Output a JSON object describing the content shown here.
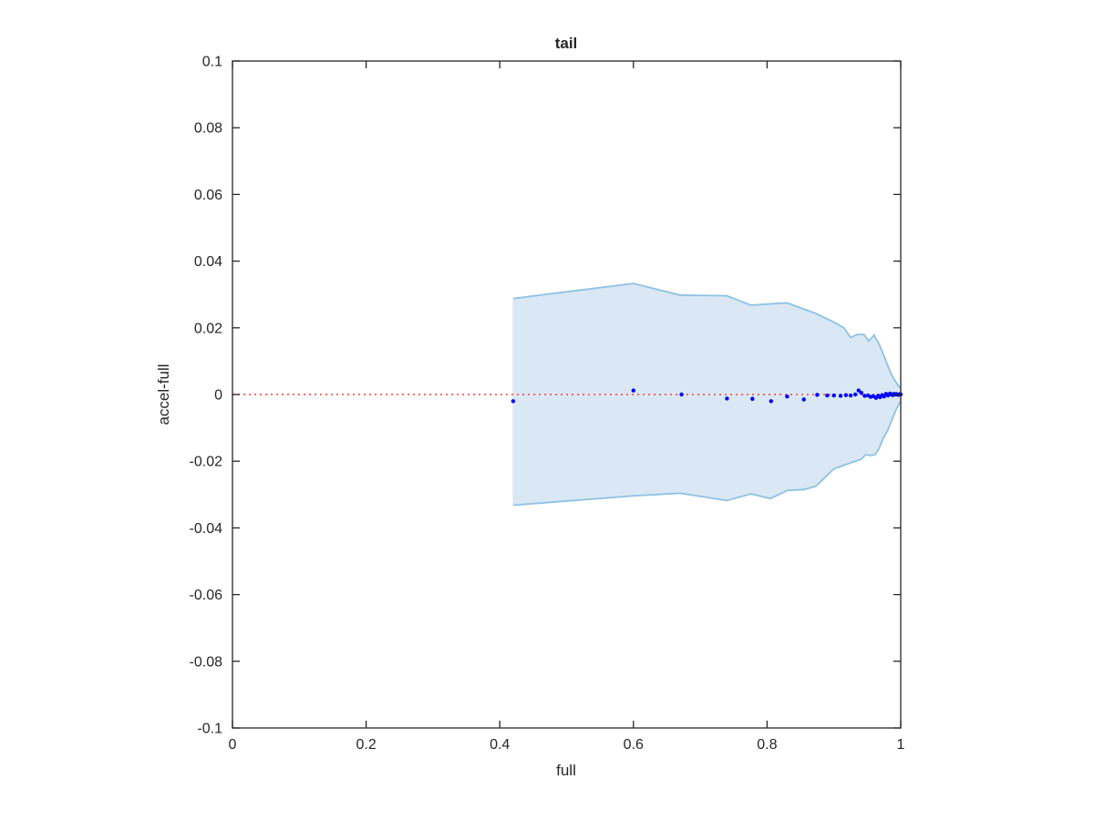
{
  "chart_data": {
    "type": "scatter",
    "title": "tail",
    "xlabel": "full",
    "ylabel": "accel-full",
    "xlim": [
      0,
      1
    ],
    "ylim": [
      -0.1,
      0.1
    ],
    "xticks": [
      0,
      0.2,
      0.4,
      0.6,
      0.8,
      1
    ],
    "xtick_labels": [
      "0",
      "0.2",
      "0.4",
      "0.6",
      "0.8",
      "1"
    ],
    "yticks": [
      -0.1,
      -0.08,
      -0.06,
      -0.04,
      -0.02,
      0,
      0.02,
      0.04,
      0.06,
      0.08,
      0.1
    ],
    "ytick_labels": [
      "-0.1",
      "-0.08",
      "-0.06",
      "-0.04",
      "-0.02",
      "0",
      "0.02",
      "0.04",
      "0.06",
      "0.08",
      "0.1"
    ],
    "grid": false,
    "reference_line": {
      "y": 0,
      "style": "dotted",
      "color": "#ff3b3b"
    },
    "band": {
      "fill": "#d9e8f4",
      "edge": "#8fc1e2",
      "upper": [
        [
          0.42,
          0.0288
        ],
        [
          0.6,
          0.0333
        ],
        [
          0.67,
          0.0298
        ],
        [
          0.74,
          0.0296
        ],
        [
          0.776,
          0.0268
        ],
        [
          0.83,
          0.0275
        ],
        [
          0.873,
          0.0243
        ],
        [
          0.9,
          0.0217
        ],
        [
          0.915,
          0.02
        ],
        [
          0.925,
          0.0171
        ],
        [
          0.935,
          0.018
        ],
        [
          0.945,
          0.018
        ],
        [
          0.952,
          0.016
        ],
        [
          0.96,
          0.0178
        ],
        [
          0.968,
          0.015
        ],
        [
          0.974,
          0.012
        ],
        [
          0.98,
          0.009
        ],
        [
          0.986,
          0.006
        ],
        [
          0.992,
          0.004
        ],
        [
          0.997,
          0.0025
        ],
        [
          1.0,
          0.002
        ]
      ],
      "lower": [
        [
          1.0,
          -0.002
        ],
        [
          0.997,
          -0.003
        ],
        [
          0.992,
          -0.005
        ],
        [
          0.986,
          -0.008
        ],
        [
          0.98,
          -0.011
        ],
        [
          0.974,
          -0.013
        ],
        [
          0.968,
          -0.016
        ],
        [
          0.962,
          -0.018
        ],
        [
          0.955,
          -0.0183
        ],
        [
          0.948,
          -0.018
        ],
        [
          0.94,
          -0.0195
        ],
        [
          0.925,
          -0.0205
        ],
        [
          0.9,
          -0.0223
        ],
        [
          0.873,
          -0.0275
        ],
        [
          0.855,
          -0.0285
        ],
        [
          0.83,
          -0.0288
        ],
        [
          0.805,
          -0.0312
        ],
        [
          0.776,
          -0.0298
        ],
        [
          0.74,
          -0.0318
        ],
        [
          0.67,
          -0.0296
        ],
        [
          0.6,
          -0.0304
        ],
        [
          0.42,
          -0.0332
        ]
      ]
    },
    "series": [
      {
        "color": "#0000ff",
        "points": [
          [
            0.42,
            -0.002
          ],
          [
            0.6,
            0.0012
          ],
          [
            0.672,
            0.0
          ],
          [
            0.74,
            -0.0012
          ],
          [
            0.778,
            -0.0013
          ],
          [
            0.806,
            -0.002
          ],
          [
            0.83,
            -0.0006
          ],
          [
            0.855,
            -0.0015
          ],
          [
            0.875,
            -0.0001
          ],
          [
            0.89,
            -0.0003
          ],
          [
            0.9,
            -0.0003
          ],
          [
            0.91,
            -0.0004
          ],
          [
            0.918,
            -0.0002
          ],
          [
            0.925,
            -0.0003
          ],
          [
            0.932,
            0.0
          ],
          [
            0.937,
            0.0012
          ],
          [
            0.941,
            0.0005
          ],
          [
            0.946,
            -0.0004
          ],
          [
            0.951,
            -0.0003
          ],
          [
            0.955,
            -0.0007
          ],
          [
            0.959,
            -0.0005
          ],
          [
            0.963,
            -0.001
          ],
          [
            0.966,
            -0.0004
          ],
          [
            0.969,
            -0.0008
          ],
          [
            0.972,
            -0.0002
          ],
          [
            0.975,
            -0.0006
          ],
          [
            0.978,
            0.0002
          ],
          [
            0.981,
            -0.0003
          ],
          [
            0.984,
            0.0003
          ],
          [
            0.986,
            0.0
          ],
          [
            0.988,
            -0.0002
          ],
          [
            0.99,
            0.0002
          ],
          [
            0.992,
            0.0
          ],
          [
            0.994,
            0.0001
          ],
          [
            0.996,
            -0.0001
          ],
          [
            0.998,
            0.0
          ],
          [
            0.999,
            0.0001
          ],
          [
            1.0,
            0.0
          ]
        ]
      }
    ]
  }
}
